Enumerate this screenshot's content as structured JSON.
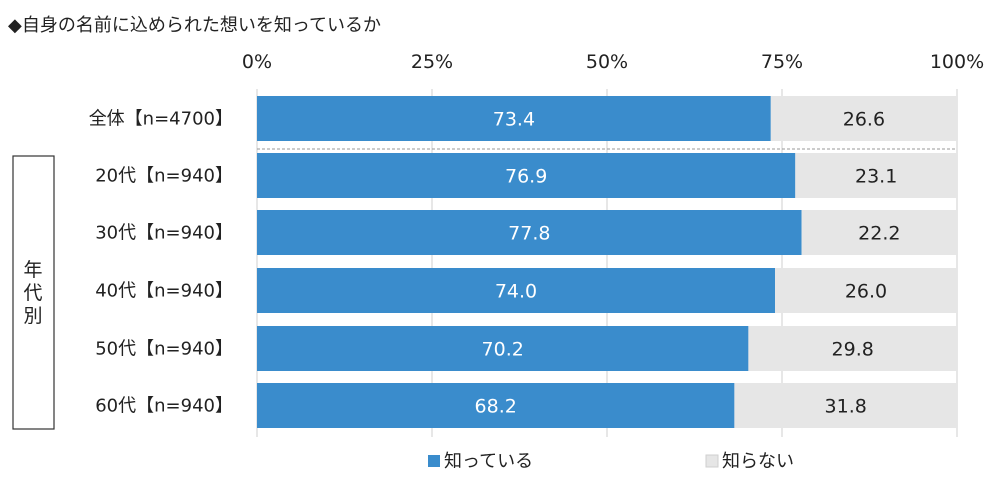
{
  "title": "◆自身の名前に込められた想いを知っているか",
  "group_label": "年代別",
  "chart_data": {
    "type": "bar",
    "orientation": "horizontal",
    "stacked": true,
    "title": "◆自身の名前に込められた想いを知っているか",
    "categories": [
      "全体【n=4700】",
      "20代【n=940】",
      "30代【n=940】",
      "40代【n=940】",
      "50代【n=940】",
      "60代【n=940】"
    ],
    "series": [
      {
        "name": "知っている",
        "values": [
          73.4,
          76.9,
          77.8,
          74.0,
          70.2,
          68.2
        ],
        "color": "#3a8ccc"
      },
      {
        "name": "知らない",
        "values": [
          26.6,
          23.1,
          22.2,
          26.0,
          29.8,
          31.8
        ],
        "color": "#e6e6e6"
      }
    ],
    "value_labels": [
      [
        "73.4",
        "76.9",
        "77.8",
        "74.0",
        "70.2",
        "68.2"
      ],
      [
        "26.6",
        "23.1",
        "22.2",
        "26.0",
        "29.8",
        "31.8"
      ]
    ],
    "xlim": [
      0,
      100
    ],
    "xticks": [
      0,
      25,
      50,
      75,
      100
    ],
    "xtick_labels": [
      "0%",
      "25%",
      "50%",
      "75%",
      "100%"
    ],
    "grid": true,
    "legend_position": "bottom"
  }
}
